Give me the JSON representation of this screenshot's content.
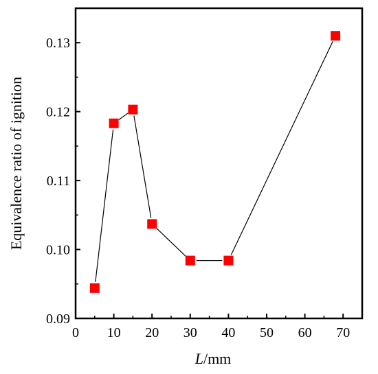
{
  "chart_data": {
    "type": "line",
    "xlabel_var": "L",
    "xlabel_unit": "/mm",
    "ylabel": "Equivalence ratio of ignition",
    "xlim": [
      0,
      75
    ],
    "ylim": [
      0.09,
      0.135
    ],
    "x_ticks": [
      0,
      10,
      20,
      30,
      40,
      50,
      60,
      70
    ],
    "y_ticks": [
      0.09,
      0.1,
      0.11,
      0.12,
      0.13
    ],
    "y_tick_labels": [
      "0.09",
      "0.10",
      "0.11",
      "0.12",
      "0.13"
    ],
    "series": [
      {
        "x": [
          5,
          10,
          15,
          20,
          30,
          40,
          68
        ],
        "y": [
          0.0944,
          0.1183,
          0.1203,
          0.1037,
          0.0984,
          0.0984,
          0.131
        ]
      }
    ],
    "marker": "square",
    "marker_color": "#ff0000",
    "line_color": "#000000",
    "grid": false,
    "legend": false
  }
}
